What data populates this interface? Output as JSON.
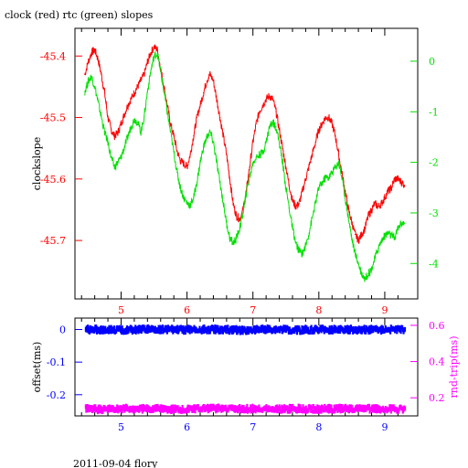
{
  "title": "clock (red) rtc (green) slopes",
  "footer": "2011-09-04 flory",
  "colors": {
    "frame": "#000000",
    "clock": "#ff0000",
    "rtc": "#00e000",
    "offset": "#0000ff",
    "rndtrip": "#ff00ff"
  },
  "chart_data": [
    {
      "type": "line",
      "title": "clock (red) rtc (green) slopes",
      "xlabel": "",
      "xlim": [
        4.3,
        9.5
      ],
      "x_ticks": [
        "5",
        "6",
        "7",
        "8",
        "9"
      ],
      "left_axis": {
        "label": "clockslope",
        "lim": [
          -45.795,
          -45.355
        ],
        "ticks": [
          "-45.4",
          "-45.5",
          "-45.6",
          "-45.7"
        ]
      },
      "right_axis": {
        "label": "",
        "lim": [
          -4.7,
          0.65
        ],
        "ticks": [
          "0",
          "-1",
          "-2",
          "-3",
          "-4"
        ]
      },
      "series": [
        {
          "name": "clock",
          "axis": "left",
          "color": "#ff0000",
          "x": [
            4.45,
            4.5,
            4.55,
            4.6,
            4.65,
            4.7,
            4.75,
            4.8,
            4.85,
            4.9,
            4.95,
            5.0,
            5.05,
            5.1,
            5.15,
            5.2,
            5.25,
            5.3,
            5.35,
            5.4,
            5.45,
            5.5,
            5.55,
            5.6,
            5.65,
            5.7,
            5.75,
            5.8,
            5.85,
            5.9,
            5.95,
            6.0,
            6.05,
            6.1,
            6.15,
            6.2,
            6.25,
            6.3,
            6.35,
            6.4,
            6.45,
            6.5,
            6.55,
            6.6,
            6.65,
            6.7,
            6.75,
            6.8,
            6.85,
            6.9,
            6.95,
            7.0,
            7.05,
            7.1,
            7.15,
            7.2,
            7.25,
            7.3,
            7.35,
            7.4,
            7.45,
            7.5,
            7.55,
            7.6,
            7.65,
            7.7,
            7.75,
            7.8,
            7.85,
            7.9,
            7.95,
            8.0,
            8.05,
            8.1,
            8.15,
            8.2,
            8.25,
            8.3,
            8.35,
            8.4,
            8.45,
            8.5,
            8.55,
            8.6,
            8.65,
            8.7,
            8.75,
            8.8,
            8.85,
            8.9,
            8.95,
            9.0,
            9.05,
            9.1,
            9.15,
            9.2,
            9.25,
            9.3
          ],
          "values": [
            -45.43,
            -45.41,
            -45.395,
            -45.39,
            -45.405,
            -45.43,
            -45.46,
            -45.5,
            -45.52,
            -45.53,
            -45.525,
            -45.51,
            -45.495,
            -45.48,
            -45.47,
            -45.46,
            -45.45,
            -45.44,
            -45.43,
            -45.41,
            -45.395,
            -45.385,
            -45.39,
            -45.42,
            -45.45,
            -45.48,
            -45.51,
            -45.53,
            -45.555,
            -45.57,
            -45.575,
            -45.58,
            -45.56,
            -45.53,
            -45.5,
            -45.48,
            -45.46,
            -45.44,
            -45.43,
            -45.44,
            -45.47,
            -45.5,
            -45.53,
            -45.56,
            -45.6,
            -45.64,
            -45.66,
            -45.665,
            -45.65,
            -45.62,
            -45.58,
            -45.54,
            -45.51,
            -45.49,
            -45.48,
            -45.47,
            -45.465,
            -45.47,
            -45.49,
            -45.52,
            -45.55,
            -45.58,
            -45.61,
            -45.635,
            -45.645,
            -45.64,
            -45.62,
            -45.6,
            -45.58,
            -45.56,
            -45.54,
            -45.52,
            -45.51,
            -45.5,
            -45.5,
            -45.51,
            -45.53,
            -45.56,
            -45.59,
            -45.62,
            -45.65,
            -45.67,
            -45.69,
            -45.7,
            -45.69,
            -45.68,
            -45.66,
            -45.65,
            -45.64,
            -45.645,
            -45.64,
            -45.63,
            -45.62,
            -45.615,
            -45.6,
            -45.6,
            -45.605,
            -45.61
          ]
        },
        {
          "name": "rtc",
          "axis": "right",
          "color": "#00e000",
          "x": [
            4.45,
            4.5,
            4.55,
            4.6,
            4.65,
            4.7,
            4.75,
            4.8,
            4.85,
            4.9,
            4.95,
            5.0,
            5.05,
            5.1,
            5.15,
            5.2,
            5.25,
            5.3,
            5.35,
            5.4,
            5.45,
            5.5,
            5.55,
            5.6,
            5.65,
            5.7,
            5.75,
            5.8,
            5.85,
            5.9,
            5.95,
            6.0,
            6.05,
            6.1,
            6.15,
            6.2,
            6.25,
            6.3,
            6.35,
            6.4,
            6.45,
            6.5,
            6.55,
            6.6,
            6.65,
            6.7,
            6.75,
            6.8,
            6.85,
            6.9,
            6.95,
            7.0,
            7.05,
            7.1,
            7.15,
            7.2,
            7.25,
            7.3,
            7.35,
            7.4,
            7.45,
            7.5,
            7.55,
            7.6,
            7.65,
            7.7,
            7.75,
            7.8,
            7.85,
            7.9,
            7.95,
            8.0,
            8.05,
            8.1,
            8.15,
            8.2,
            8.25,
            8.3,
            8.35,
            8.4,
            8.45,
            8.5,
            8.55,
            8.6,
            8.65,
            8.7,
            8.75,
            8.8,
            8.85,
            8.9,
            8.95,
            9.0,
            9.05,
            9.1,
            9.15,
            9.2,
            9.25,
            9.3
          ],
          "values": [
            -0.6,
            -0.4,
            -0.3,
            -0.5,
            -0.8,
            -1.1,
            -1.4,
            -1.6,
            -1.9,
            -2.1,
            -2.0,
            -1.9,
            -1.7,
            -1.5,
            -1.3,
            -1.15,
            -1.2,
            -1.4,
            -1.1,
            -0.6,
            -0.2,
            0.1,
            0.15,
            -0.2,
            -0.6,
            -1.0,
            -1.4,
            -1.8,
            -2.2,
            -2.5,
            -2.7,
            -2.8,
            -2.85,
            -2.7,
            -2.4,
            -2.0,
            -1.7,
            -1.5,
            -1.4,
            -1.6,
            -2.0,
            -2.4,
            -2.8,
            -3.2,
            -3.5,
            -3.6,
            -3.5,
            -3.3,
            -3.0,
            -2.6,
            -2.3,
            -2.0,
            -1.9,
            -1.85,
            -1.8,
            -1.6,
            -1.3,
            -1.2,
            -1.3,
            -1.6,
            -2.0,
            -2.5,
            -2.9,
            -3.3,
            -3.6,
            -3.75,
            -3.8,
            -3.65,
            -3.4,
            -3.1,
            -2.8,
            -2.5,
            -2.4,
            -2.3,
            -2.3,
            -2.2,
            -2.1,
            -2.0,
            -2.3,
            -2.7,
            -3.1,
            -3.5,
            -3.8,
            -4.0,
            -4.2,
            -4.3,
            -4.2,
            -4.1,
            -3.9,
            -3.7,
            -3.55,
            -3.45,
            -3.4,
            -3.45,
            -3.5,
            -3.3,
            -3.2,
            -3.2
          ]
        }
      ]
    },
    {
      "type": "scatter",
      "xlim": [
        4.3,
        9.5
      ],
      "x_ticks": [
        "5",
        "6",
        "7",
        "8",
        "9"
      ],
      "left_axis": {
        "label": "offset(ms)",
        "lim": [
          -0.265,
          0.035
        ],
        "ticks": [
          "0",
          "-0.1",
          "-0.2"
        ]
      },
      "right_axis": {
        "label": "rnd-trip(ms)",
        "lim": [
          0.1,
          0.64
        ],
        "ticks": [
          "0.6",
          "0.4",
          "0.2"
        ]
      },
      "series": [
        {
          "name": "offset",
          "axis": "left",
          "color": "#0000ff",
          "x": [
            4.45,
            4.7,
            5.0,
            5.3,
            5.6,
            5.9,
            6.2,
            6.5,
            6.8,
            7.1,
            7.4,
            7.7,
            8.0,
            8.3,
            8.6,
            8.9,
            9.3
          ],
          "values": [
            0.0,
            0.0,
            -0.002,
            0.0,
            0.001,
            -0.001,
            0.0,
            0.0,
            -0.002,
            0.0,
            0.0,
            -0.001,
            0.0,
            0.0,
            -0.001,
            0.0,
            -0.001
          ]
        },
        {
          "name": "rnd-trip",
          "axis": "right",
          "color": "#ff00ff",
          "x": [
            4.45,
            4.7,
            5.0,
            5.3,
            5.6,
            5.9,
            6.2,
            6.5,
            6.8,
            7.1,
            7.4,
            7.7,
            8.0,
            8.3,
            8.6,
            8.9,
            9.3
          ],
          "values": [
            0.14,
            0.135,
            0.14,
            0.138,
            0.14,
            0.136,
            0.14,
            0.142,
            0.138,
            0.14,
            0.137,
            0.14,
            0.138,
            0.14,
            0.14,
            0.138,
            0.14
          ]
        }
      ]
    }
  ]
}
